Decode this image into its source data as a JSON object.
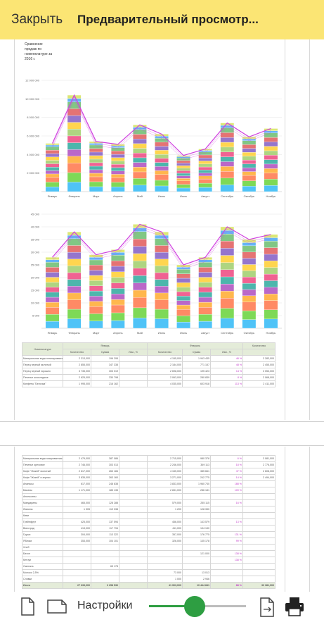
{
  "topbar": {
    "close_label": "Закрыть",
    "title": "Предварительный просмотр..."
  },
  "report": {
    "chart_title": "Сравнение продаж по номенклатуре за 2016 г.",
    "table_header": {
      "col_item": "Номенклатура",
      "group1": "Январь",
      "group2": "Февраль",
      "qty": "Количество",
      "sum": "Сумма",
      "change": "Изм., %"
    }
  },
  "chart_data": [
    {
      "type": "bar",
      "stacked": true,
      "categories": [
        "Январь",
        "Февраль",
        "Март",
        "Апрель",
        "Май",
        "Июнь",
        "Июль",
        "Август",
        "Сентябрь",
        "Октябрь",
        "Ноябрь"
      ],
      "yticks": [
        "12 000 000",
        "10 000 000",
        "8 000 000",
        "6 000 000",
        "4 000 000",
        "2 000 000"
      ],
      "ylim": [
        0,
        12000000
      ],
      "totals": [
        5200000,
        10400000,
        5400000,
        5100000,
        7200000,
        6200000,
        3900000,
        4600000,
        7400000,
        5900000,
        6800000
      ],
      "segment_count": 14
    },
    {
      "type": "bar",
      "stacked": true,
      "categories": [
        "Январь",
        "Февраль",
        "Март",
        "Апрель",
        "Май",
        "Июнь",
        "Июль",
        "Август",
        "Сентябрь",
        "Октябрь",
        "Ноябрь"
      ],
      "yticks": [
        "45 000",
        "40 000",
        "35 000",
        "30 000",
        "25 000",
        "20 000",
        "15 000",
        "10 000",
        "5 000"
      ],
      "ylim": [
        0,
        45000
      ],
      "totals": [
        28000,
        38000,
        29000,
        31000,
        41000,
        38000,
        25000,
        28000,
        40000,
        35000,
        37000
      ],
      "segment_count": 14
    }
  ],
  "table1_rows": [
    [
      "Минеральная вода негазированная",
      "2 313,000",
      "196 295",
      "",
      "4 155,000",
      "1 943 435",
      "46 %",
      "3 283,000"
    ],
    [
      "Перец черный молотый",
      "2 855,000",
      "347 338",
      "",
      "2 184,000",
      "771 157",
      "48 %",
      "2 455,000"
    ],
    [
      "Перец черный горошек",
      "3 735,000",
      "303 019",
      "",
      "2 698,000",
      "195 423",
      "14 %",
      "3 053,000"
    ],
    [
      "Печенье шоколадное",
      "2 625,000",
      "330 798",
      "",
      "2 063,000",
      "280 839",
      "8 %",
      "2 068,000"
    ],
    [
      "Конфеты \"Белочка\"",
      "1 995,000",
      "216 162",
      "",
      "4 035,000",
      "603 918",
      "113 %",
      "2 411,000"
    ]
  ],
  "table2_rows": [
    [
      "Минеральная вода газированная",
      "2 479,000",
      "387 086",
      "",
      "2 715,000",
      "980 378",
      "6 %",
      "3 081,000"
    ],
    [
      "Печенье ореховое",
      "2 746,000",
      "303 013",
      "",
      "2 246,000",
      "349 113",
      "18 %",
      "2 776,000"
    ],
    [
      "Кофе \"Жокей\" молотый",
      "2 617,000",
      "263 184",
      "",
      "4 155,000",
      "385 661",
      "47 %",
      "2 608,000"
    ],
    [
      "Кофе \"Жокей\" в зернах",
      "3 835,000",
      "263 160",
      "",
      "3 271,000",
      "242 775",
      "14 %",
      "2 494,000"
    ],
    [
      "Ананасы",
      "617,000",
      "248 838",
      "",
      "3 833,000",
      "1 960 740",
      "188 %",
      ""
    ],
    [
      "Бананы",
      "1 171,000",
      "185 135",
      "",
      "2 831,000",
      "286 181",
      "109 %",
      ""
    ],
    [
      "Апельсины",
      "",
      "",
      "",
      "",
      "",
      "",
      ""
    ],
    [
      "Мандарины",
      "465,000",
      "128 288",
      "",
      "579,000",
      "255 115",
      "16 %",
      ""
    ],
    [
      "Лимоны",
      "1 305",
      "119 038",
      "",
      "1 200",
      "128 330",
      "",
      ""
    ],
    [
      "Киви",
      "",
      "",
      "",
      "",
      "",
      "",
      ""
    ],
    [
      "Грейпфрут",
      "425,000",
      "137 594",
      "",
      "456,000",
      "143 579",
      "13 %",
      ""
    ],
    [
      "Виноград",
      "413,000",
      "117 794",
      "",
      "411,000",
      "134 130",
      "",
      ""
    ],
    [
      "Груши",
      "304,000",
      "113 322",
      "",
      "357,000",
      "176 775",
      "131 %",
      ""
    ],
    [
      "Яблоки",
      "353,000",
      "104 101",
      "",
      "326,000",
      "135 178",
      "99 %",
      ""
    ],
    [
      "Хлеб",
      "",
      "",
      "",
      "",
      "",
      "",
      ""
    ],
    [
      "Батон",
      "",
      "",
      "",
      "",
      "121 000",
      "138 %",
      ""
    ],
    [
      "Кетчуп",
      "",
      "",
      "",
      "",
      "",
      "138 %",
      ""
    ],
    [
      "Сметана",
      "",
      "65 178",
      "",
      "",
      "",
      "",
      ""
    ],
    [
      "Молоко 2,5%",
      "",
      "",
      "",
      "73 000",
      "13 013",
      "",
      ""
    ],
    [
      "Сливки",
      "",
      "",
      "",
      "1 000",
      "2 946",
      "",
      ""
    ]
  ],
  "table2_total": [
    "Итого",
    "27 633,000",
    "3 258 530",
    "",
    "41 903,000",
    "10 444 841",
    "88 %",
    "30 381,000"
  ],
  "bottombar": {
    "settings_label": "Настройки",
    "zoom_percent": 55
  },
  "colors": {
    "topbar": "#fbe574",
    "slider_active": "#2e9e42",
    "highlight": "#c038c8",
    "table_header": "#e4ecd9"
  }
}
